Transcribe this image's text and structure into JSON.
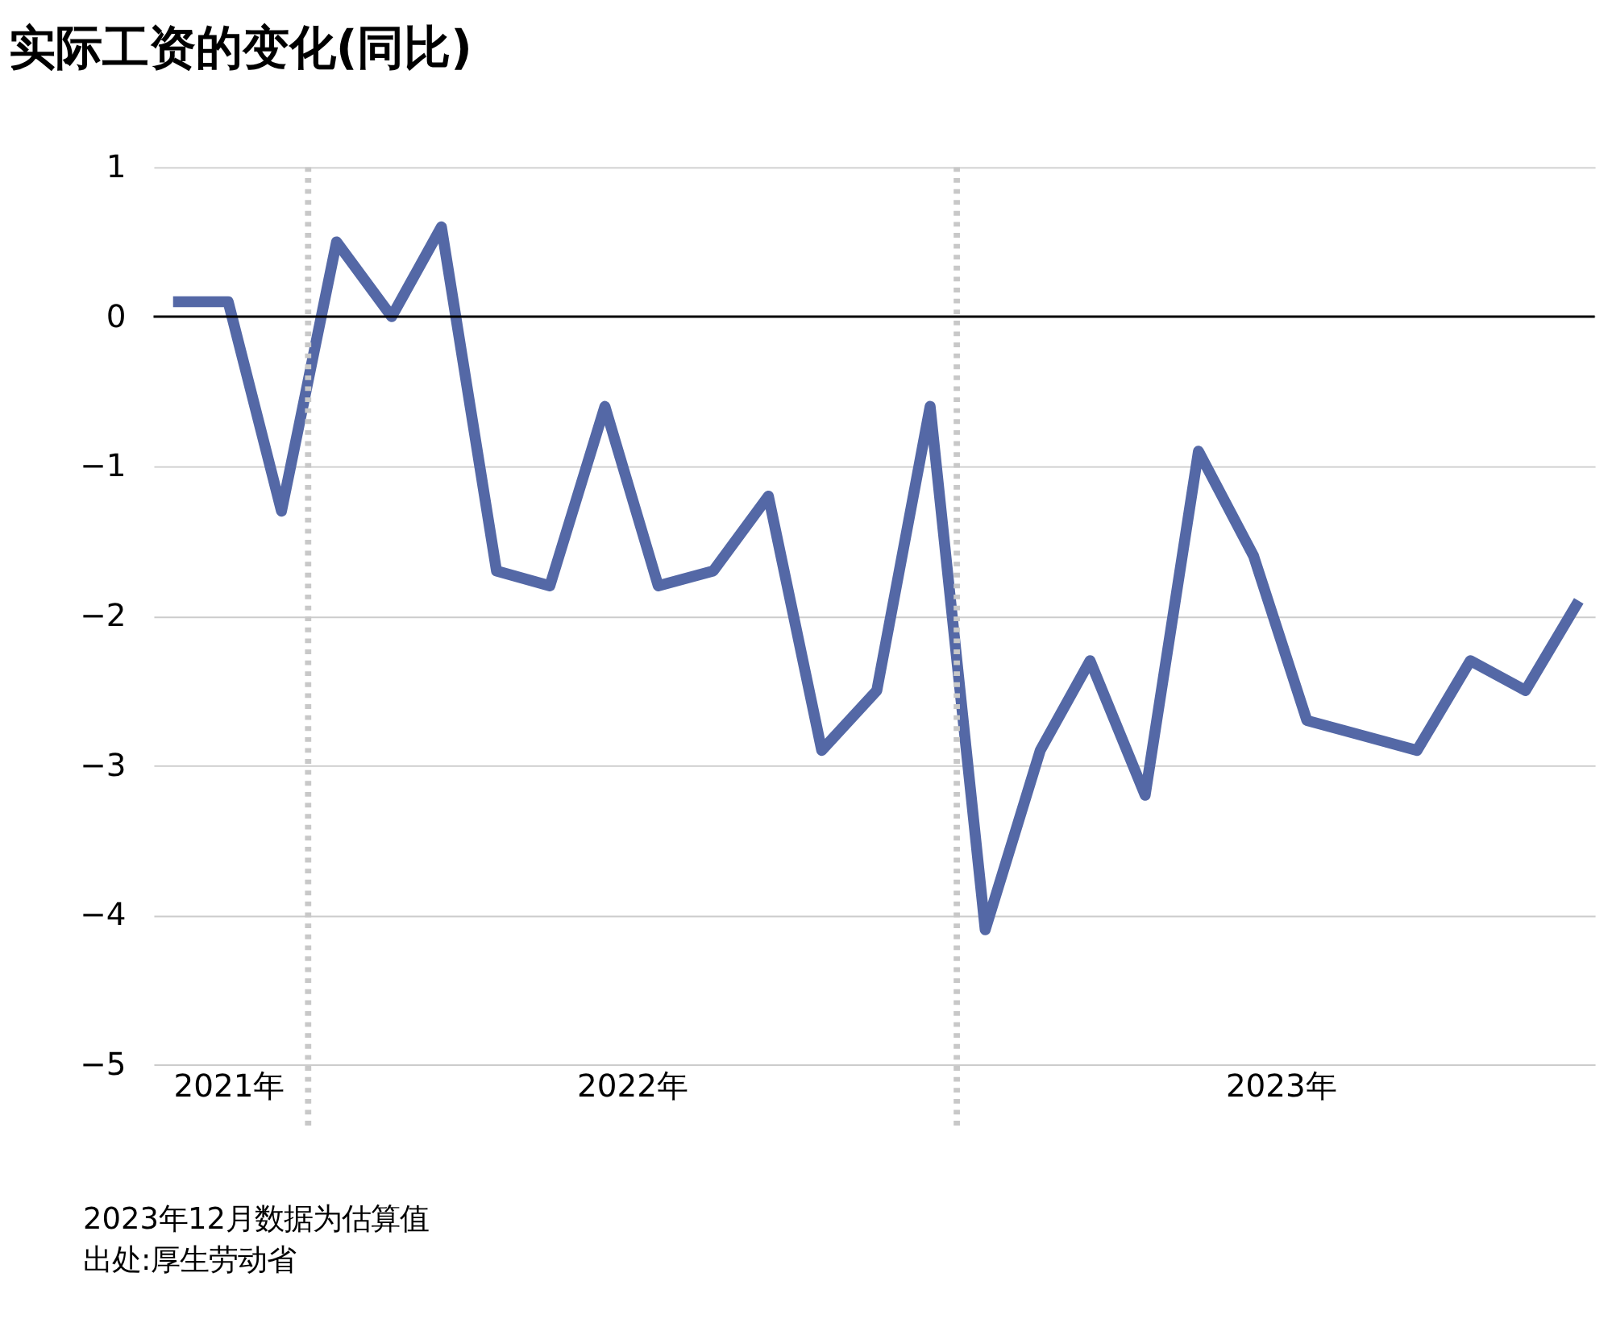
{
  "chart_data": {
    "type": "line",
    "title": "实际工资的变化(同比)",
    "x": [
      "2021-10",
      "2021-11",
      "2021-12",
      "2022-01",
      "2022-02",
      "2022-03",
      "2022-04",
      "2022-05",
      "2022-06",
      "2022-07",
      "2022-08",
      "2022-09",
      "2022-10",
      "2022-11",
      "2022-12",
      "2023-01",
      "2023-02",
      "2023-03",
      "2023-04",
      "2023-05",
      "2023-06",
      "2023-07",
      "2023-08",
      "2023-09",
      "2023-10",
      "2023-11",
      "2023-12"
    ],
    "series": [
      {
        "color": "#5468a6",
        "values": [
          0.1,
          0.1,
          -1.3,
          0.5,
          0.0,
          0.6,
          -1.7,
          -1.8,
          -0.6,
          -1.8,
          -1.7,
          -1.2,
          -2.9,
          -2.5,
          -0.6,
          -4.1,
          -2.9,
          -2.3,
          -3.2,
          -0.9,
          -1.6,
          -2.7,
          -2.8,
          -2.9,
          -2.3,
          -2.5,
          -1.9
        ]
      }
    ],
    "xlim": [
      "2021-09-20",
      "2023-12-10"
    ],
    "xticks": [
      {
        "value": "2021-11",
        "label": "2021年"
      },
      {
        "value": "2022-06-16",
        "label": "2022年"
      },
      {
        "value": "2023-06-16",
        "label": "2023年"
      }
    ],
    "ylim": [
      -5,
      1
    ],
    "yticks": [
      -5,
      -4,
      -3,
      -2,
      -1,
      0,
      1
    ],
    "grid": "y",
    "marker": "none",
    "line_style": "solid",
    "ref_lines": [
      {
        "axis": "y",
        "value": 0,
        "color": "#000000",
        "line_style": "solid"
      },
      {
        "axis": "x",
        "value": "2021-12-16",
        "color": "#c8c8c8",
        "line_style": "dotted"
      },
      {
        "axis": "x",
        "value": "2022-12-16",
        "color": "#c8c8c8",
        "line_style": "dotted"
      }
    ],
    "annotations": [
      "2023年12月数据为估算值",
      "出处:厚生劳动省"
    ]
  }
}
